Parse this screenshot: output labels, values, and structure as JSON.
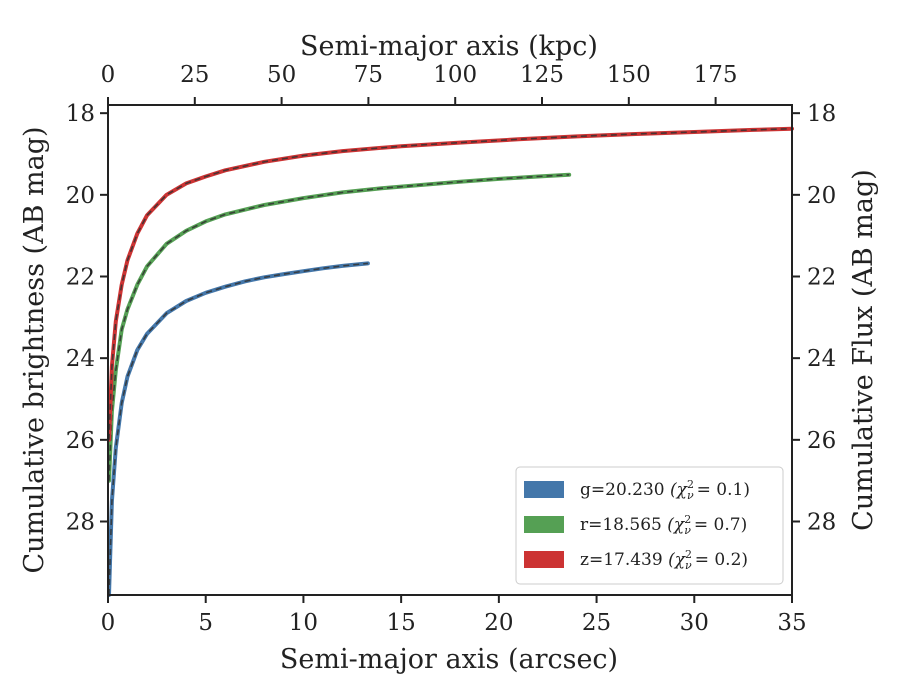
{
  "chart_data": {
    "type": "line",
    "xlabel": "Semi-major axis (arcsec)",
    "ylabel": "Cumulative brightness (AB mag)",
    "ylabel_right": "Cumulative Flux (AB mag)",
    "xlabel_top": "Semi-major axis (kpc)",
    "xlim": [
      0,
      35
    ],
    "ylim": [
      29.8,
      17.8
    ],
    "y_inverted": true,
    "xlim_top": [
      0,
      197
    ],
    "x_ticks": [
      0,
      5,
      10,
      15,
      20,
      25,
      30,
      35
    ],
    "x_tick_labels": [
      "0",
      "5",
      "10",
      "15",
      "20",
      "25",
      "30",
      "35"
    ],
    "y_ticks": [
      18,
      20,
      22,
      24,
      26,
      28
    ],
    "y_tick_labels": [
      "18",
      "20",
      "22",
      "24",
      "26",
      "28"
    ],
    "y_tick_labels_right": [
      "18",
      "20",
      "22",
      "24",
      "26",
      "28"
    ],
    "x_top_ticks": [
      0,
      25,
      50,
      75,
      100,
      125,
      150,
      175
    ],
    "x_top_tick_labels": [
      "0",
      "25",
      "50",
      "75",
      "100",
      "125",
      "150",
      "175"
    ],
    "grid": false,
    "legend_position": "lower-right",
    "series": [
      {
        "name": "g=20.230 (χ²ᵥ = 0.1)",
        "legend_label": "g=20.230",
        "chi_label": "(χ",
        "chi_sup": "2",
        "chi_sub": "ν",
        "chi_value": "= 0.1)",
        "color": "#4477aa",
        "x": [
          0.05,
          0.2,
          0.4,
          0.7,
          1.0,
          1.5,
          2.0,
          3.0,
          4.0,
          5.0,
          6.0,
          7.0,
          8.0,
          9.0,
          10.0,
          11.0,
          12.0,
          13.3
        ],
        "y": [
          29.8,
          27.5,
          26.2,
          25.1,
          24.45,
          23.8,
          23.4,
          22.9,
          22.6,
          22.4,
          22.25,
          22.12,
          22.02,
          21.94,
          21.87,
          21.8,
          21.74,
          21.68
        ]
      },
      {
        "name": "r=18.565 (χ²ᵥ = 0.7)",
        "legend_label": "r=18.565",
        "chi_label": "(χ",
        "chi_sup": "2",
        "chi_sub": "ν",
        "chi_value": "= 0.7)",
        "color": "#55a054",
        "x": [
          0.05,
          0.2,
          0.4,
          0.7,
          1.0,
          1.5,
          2.0,
          3.0,
          4.0,
          5.0,
          6.0,
          8.0,
          10.0,
          12.0,
          14.0,
          16.0,
          18.0,
          20.0,
          22.0,
          23.6
        ],
        "y": [
          27.0,
          25.3,
          24.3,
          23.3,
          22.8,
          22.2,
          21.75,
          21.2,
          20.88,
          20.65,
          20.48,
          20.25,
          20.08,
          19.94,
          19.84,
          19.76,
          19.68,
          19.61,
          19.55,
          19.51
        ]
      },
      {
        "name": "z=17.439 (χ²ᵥ = 0.2)",
        "legend_label": "z=17.439",
        "chi_label": "(χ",
        "chi_sup": "2",
        "chi_sub": "ν",
        "chi_value": "= 0.2)",
        "color": "#cc3333",
        "x": [
          0.05,
          0.2,
          0.4,
          0.7,
          1.0,
          1.5,
          2.0,
          3.0,
          4.0,
          5.0,
          6.0,
          8.0,
          10.0,
          12.0,
          15.0,
          18.0,
          21.0,
          24.0,
          27.0,
          30.0,
          33.0,
          35.0
        ],
        "y": [
          26.0,
          24.2,
          23.1,
          22.2,
          21.6,
          20.95,
          20.5,
          20.0,
          19.72,
          19.55,
          19.4,
          19.19,
          19.04,
          18.93,
          18.81,
          18.72,
          18.64,
          18.57,
          18.51,
          18.46,
          18.41,
          18.38
        ]
      }
    ]
  }
}
